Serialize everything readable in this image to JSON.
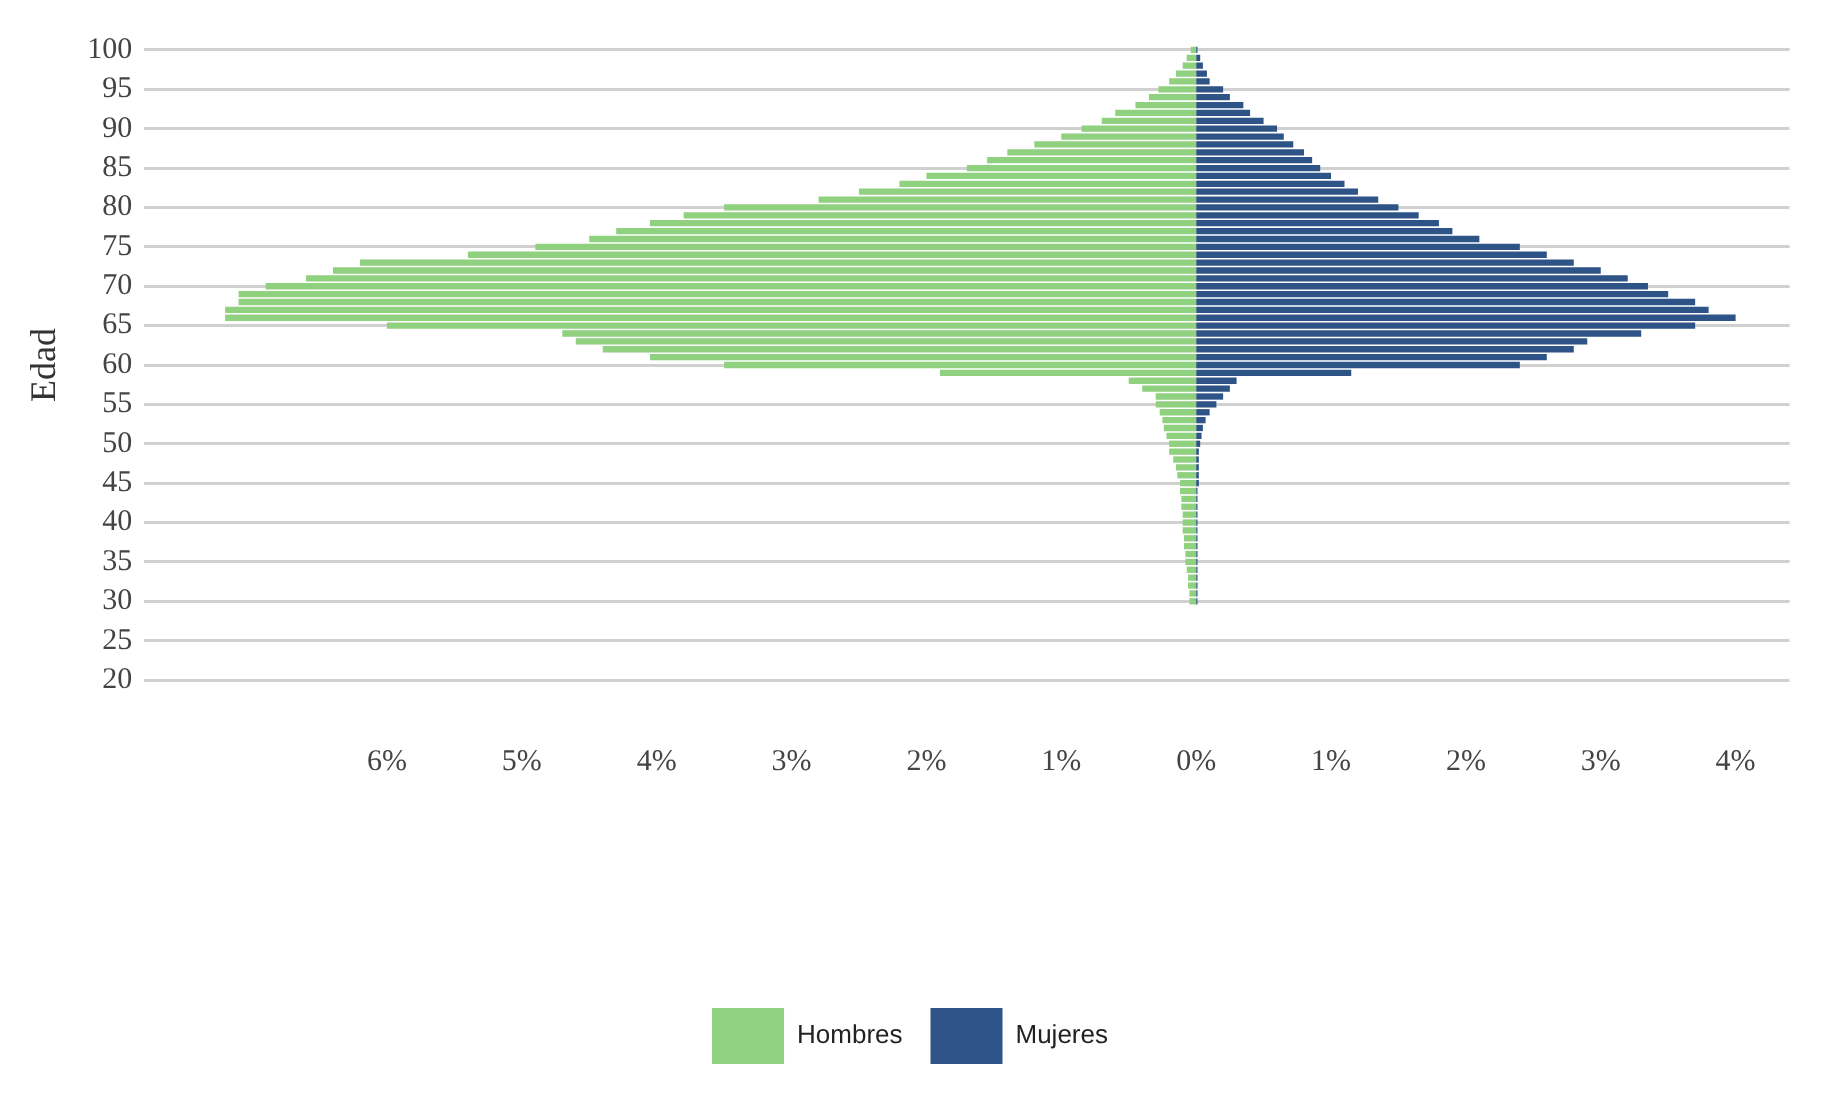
{
  "chart_data": {
    "type": "bar",
    "orientation": "horizontal",
    "ylabel": "Edad",
    "categories": [
      "100",
      null,
      null,
      null,
      null,
      "95",
      null,
      null,
      null,
      null,
      "90",
      null,
      null,
      null,
      null,
      "85",
      null,
      null,
      null,
      null,
      "80",
      null,
      null,
      null,
      null,
      "75",
      null,
      null,
      null,
      null,
      "70",
      null,
      null,
      null,
      null,
      "65",
      null,
      null,
      null,
      null,
      "60",
      null,
      null,
      null,
      null,
      "55",
      null,
      null,
      null,
      null,
      "50",
      null,
      null,
      null,
      null,
      "45",
      null,
      null,
      null,
      null,
      "40",
      null,
      null,
      null,
      null,
      "35",
      null,
      null,
      null,
      null,
      "30",
      null,
      null,
      null,
      null,
      "25",
      null,
      null,
      null,
      null,
      "20"
    ],
    "series": [
      {
        "name": "Hombres",
        "color": "#8fd17e",
        "values": [
          -0.04,
          -0.07,
          -0.1,
          -0.15,
          -0.2,
          -0.28,
          -0.35,
          -0.45,
          -0.6,
          -0.7,
          -0.85,
          -1.0,
          -1.2,
          -1.4,
          -1.55,
          -1.7,
          -2.0,
          -2.2,
          -2.5,
          -2.8,
          -3.5,
          -3.8,
          -4.05,
          -4.3,
          -4.5,
          -4.9,
          -5.4,
          -6.2,
          -6.4,
          -6.6,
          -6.9,
          -7.1,
          -7.1,
          -7.2,
          -7.2,
          -6.0,
          -4.7,
          -4.6,
          -4.4,
          -4.05,
          -3.5,
          -1.9,
          -0.5,
          -0.4,
          -0.3,
          -0.3,
          -0.27,
          -0.25,
          -0.24,
          -0.22,
          -0.2,
          -0.2,
          -0.17,
          -0.15,
          -0.14,
          -0.12,
          -0.12,
          -0.11,
          -0.11,
          -0.1,
          -0.1,
          -0.1,
          -0.09,
          -0.09,
          -0.08,
          -0.08,
          -0.07,
          -0.06,
          -0.06,
          -0.05,
          -0.05,
          null,
          null,
          null,
          null,
          null,
          null,
          null,
          null,
          null,
          null
        ]
      },
      {
        "name": "Mujeres",
        "color": "#2e5386",
        "values": [
          0.01,
          0.03,
          0.05,
          0.08,
          0.1,
          0.2,
          0.25,
          0.35,
          0.4,
          0.5,
          0.6,
          0.65,
          0.72,
          0.8,
          0.86,
          0.92,
          1.0,
          1.1,
          1.2,
          1.35,
          1.5,
          1.65,
          1.8,
          1.9,
          2.1,
          2.4,
          2.6,
          2.8,
          3.0,
          3.2,
          3.35,
          3.5,
          3.7,
          3.8,
          4.0,
          3.7,
          3.3,
          2.9,
          2.8,
          2.6,
          2.4,
          1.15,
          0.3,
          0.25,
          0.2,
          0.15,
          0.1,
          0.07,
          0.05,
          0.04,
          0.03,
          0.02,
          0.02,
          0.02,
          0.02,
          0.02,
          0.01,
          0.01,
          0.01,
          0.01,
          0.01,
          0.01,
          0.01,
          0.01,
          0.01,
          0.01,
          0.01,
          0.01,
          0.01,
          0.01,
          0.01,
          null,
          null,
          null,
          null,
          null,
          null,
          null,
          null,
          null,
          null
        ]
      }
    ],
    "xlim": [
      -7.8,
      4.4
    ],
    "xticks": [
      {
        "value": -6,
        "label": "6%"
      },
      {
        "value": -5,
        "label": "5%"
      },
      {
        "value": -4,
        "label": "4%"
      },
      {
        "value": -3,
        "label": "3%"
      },
      {
        "value": -2,
        "label": "2%"
      },
      {
        "value": -1,
        "label": "1%"
      },
      {
        "value": 0,
        "label": "0%"
      },
      {
        "value": 1,
        "label": "1%"
      },
      {
        "value": 2,
        "label": "2%"
      },
      {
        "value": 3,
        "label": "3%"
      },
      {
        "value": 4,
        "label": "4%"
      }
    ],
    "stacked": true,
    "grid": "y",
    "legend": "bottom"
  }
}
